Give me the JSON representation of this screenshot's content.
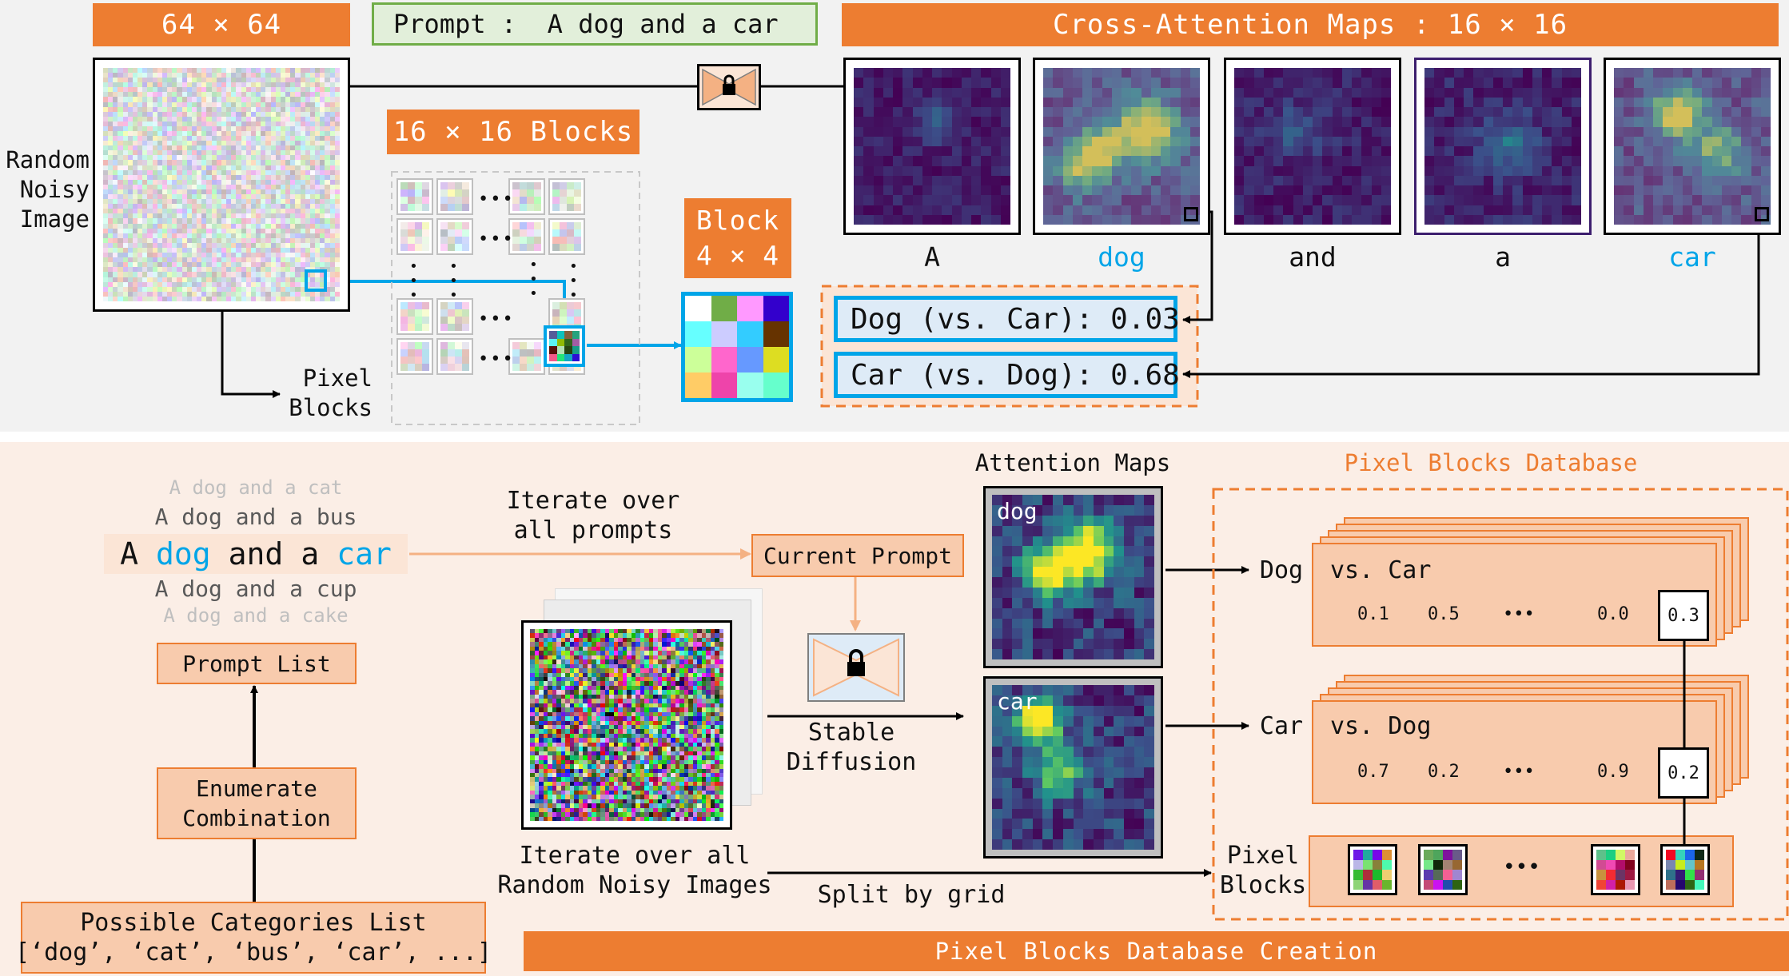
{
  "top": {
    "noise_title": "64 × 64",
    "prompt_text": "Prompt :  A dog and a car",
    "cross_title": "Cross-Attention Maps : 16 × 16",
    "random_label": "Random\nNoisy\nImage",
    "blocks_title": "16 × 16 Blocks",
    "block_title": "Block\n4 × 4",
    "pixel_blocks_label": "Pixel\nBlocks",
    "tokens": [
      "A",
      "dog",
      "and",
      "a",
      "car"
    ],
    "dog_score": "Dog (vs. Car): 0.03",
    "car_score": "Car (vs. Dog): 0.68"
  },
  "bottom": {
    "prompts": [
      "A dog and a cat",
      "A dog and a bus",
      "A dog and a cup",
      "A dog and a cake"
    ],
    "current": {
      "a": "A",
      "dog": "dog",
      "and": "and",
      "a2": "a",
      "car": "car"
    },
    "prompt_list": "Prompt List",
    "enumerate": "Enumerate\nCombination",
    "categories_title": "Possible Categories List",
    "categories_list": "[‘dog’, ‘cat’, ‘bus’, ‘car’, ...]",
    "iterate_prompts": "Iterate over\nall prompts",
    "current_prompt": "Current Prompt",
    "stable_diffusion": "Stable\nDiffusion",
    "iterate_images": "Iterate over all\nRandom Noisy Images",
    "split_grid": "Split by grid",
    "attention_maps": "Attention Maps",
    "map_dog": "dog",
    "map_car": "car",
    "db_title": "Pixel Blocks Database",
    "row_dog": {
      "name": "Dog",
      "vs": "vs. Car",
      "values": [
        "0.1",
        "0.5",
        "•••",
        "0.0",
        "0.3"
      ]
    },
    "row_car": {
      "name": "Car",
      "vs": "vs. Dog",
      "values": [
        "0.7",
        "0.2",
        "•••",
        "0.9",
        "0.2"
      ]
    },
    "db_pixel_label": "Pixel\nBlocks",
    "db_dots": "•••",
    "footer": "Pixel Blocks Database Creation"
  },
  "colors": {
    "orange": "#ed7d31",
    "blue": "#00a5e8",
    "peach": "#f8cbad"
  }
}
